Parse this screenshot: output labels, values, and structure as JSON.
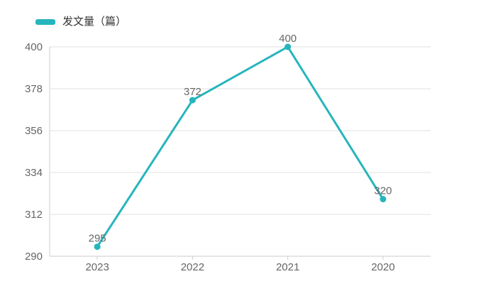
{
  "legend": {
    "label": "发文量（篇）"
  },
  "colors": {
    "series": "#26b5bd",
    "grid_line": "#e0e0e0",
    "axis_line": "#cccccc",
    "axis_text": "#666666",
    "point_label_text": "#666666",
    "legend_text": "#333333"
  },
  "chart_data": {
    "type": "line",
    "categories": [
      "2023",
      "2022",
      "2021",
      "2020"
    ],
    "series": [
      {
        "name": "发文量（篇）",
        "values": [
          295,
          372,
          400,
          320
        ]
      }
    ],
    "title": "",
    "xlabel": "",
    "ylabel": "",
    "ylim": [
      290,
      400
    ],
    "yticks": [
      290,
      312,
      334,
      356,
      378,
      400
    ],
    "grid": true,
    "legend_position": "top-left",
    "point_labels": [
      295,
      372,
      400,
      320
    ]
  }
}
